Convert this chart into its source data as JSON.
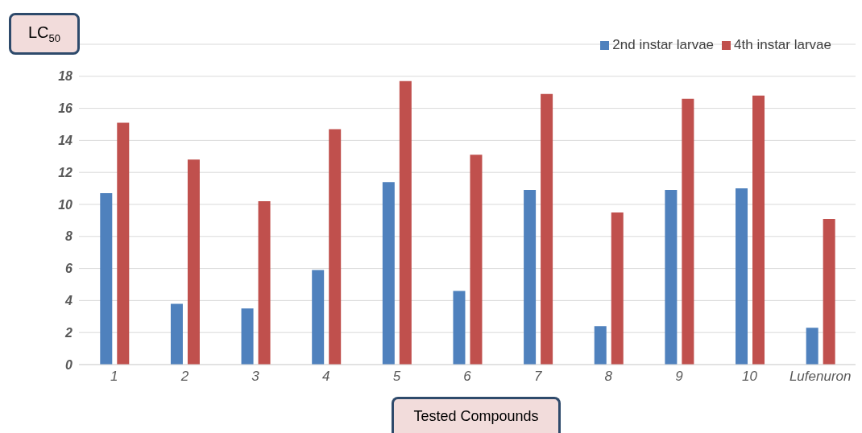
{
  "chart_data": {
    "type": "bar",
    "xlabel": "Tested Compounds",
    "ylabel": "LC$_{50}$",
    "categories": [
      "1",
      "2",
      "3",
      "4",
      "5",
      "6",
      "7",
      "8",
      "9",
      "10",
      "Lufenuron"
    ],
    "series": [
      {
        "name": "2nd instar larvae",
        "color": "#4f81bd",
        "values": [
          10.7,
          3.8,
          3.5,
          5.9,
          11.4,
          4.6,
          10.9,
          2.4,
          10.9,
          11.0,
          2.3
        ]
      },
      {
        "name": "4th instar larvae",
        "color": "#c0504d",
        "values": [
          15.1,
          12.8,
          10.2,
          14.7,
          17.7,
          13.1,
          16.9,
          9.5,
          16.6,
          16.8,
          9.1
        ]
      }
    ],
    "ylim": [
      0,
      20
    ],
    "yticks": [
      0,
      2,
      4,
      6,
      8,
      10,
      12,
      14,
      16,
      18,
      {
        "value": 20,
        "label": null
      }
    ],
    "grid": "y",
    "legend": "top right"
  }
}
